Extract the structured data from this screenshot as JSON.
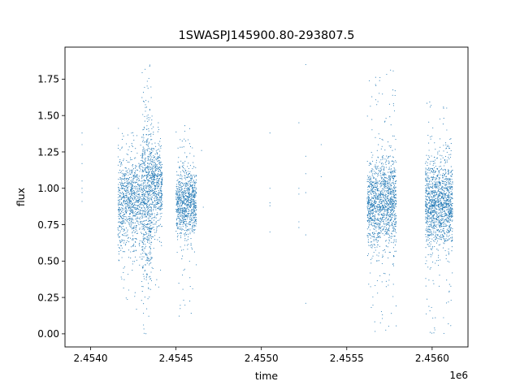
{
  "chart_data": {
    "type": "scatter",
    "title": "1SWASPJ145900.80-293807.5",
    "xlabel": "time",
    "ylabel": "flux",
    "x_offset_label": "1e6",
    "x_scale": 1000000,
    "xlim": [
      2453850,
      2456210
    ],
    "ylim": [
      -0.09,
      1.97
    ],
    "x_ticks": [
      2454000,
      2454500,
      2455000,
      2455500,
      2456000
    ],
    "x_tick_labels": [
      "2.4540",
      "2.4545",
      "2.4550",
      "2.4555",
      "2.4560"
    ],
    "y_ticks": [
      0.0,
      0.25,
      0.5,
      0.75,
      1.0,
      1.25,
      1.5,
      1.75
    ],
    "y_tick_labels": [
      "0.00",
      "0.25",
      "0.50",
      "0.75",
      "1.00",
      "1.25",
      "1.50",
      "1.75"
    ],
    "grid": false,
    "marker_color": "#1f77b4",
    "series": [
      {
        "clusters": [
          {
            "x_range": [
              2454160,
              2454300
            ],
            "y_center": 0.9,
            "y_spread": 0.16,
            "y_min": 0.15,
            "y_max": 1.45,
            "count": 900
          },
          {
            "x_range": [
              2454300,
              2454360
            ],
            "y_center": 0.95,
            "y_spread": 0.28,
            "y_min": 0.0,
            "y_max": 1.87,
            "count": 700
          },
          {
            "x_range": [
              2454360,
              2454420
            ],
            "y_center": 1.02,
            "y_spread": 0.14,
            "y_min": 0.3,
            "y_max": 1.45,
            "count": 450
          },
          {
            "x_range": [
              2454500,
              2454620
            ],
            "y_center": 0.9,
            "y_spread": 0.12,
            "y_min": 0.12,
            "y_max": 1.43,
            "count": 900
          },
          {
            "x_range": [
              2455620,
              2455790
            ],
            "y_center": 0.9,
            "y_spread": 0.15,
            "y_min": 0.0,
            "y_max": 1.83,
            "count": 1400
          },
          {
            "x_range": [
              2455960,
              2456120
            ],
            "y_center": 0.9,
            "y_spread": 0.15,
            "y_min": 0.0,
            "y_max": 1.6,
            "count": 1400
          }
        ],
        "isolated_points": [
          [
            2453950,
            1.38
          ],
          [
            2453950,
            1.3
          ],
          [
            2453950,
            1.17
          ],
          [
            2453950,
            1.05
          ],
          [
            2453950,
            1.0
          ],
          [
            2453950,
            0.97
          ],
          [
            2453950,
            0.91
          ],
          [
            2454650,
            1.26
          ],
          [
            2454660,
            0.87
          ],
          [
            2455050,
            1.38
          ],
          [
            2455050,
            1.0
          ],
          [
            2455050,
            0.9
          ],
          [
            2455050,
            0.88
          ],
          [
            2455050,
            0.7
          ],
          [
            2455220,
            1.45
          ],
          [
            2455220,
            1.0
          ],
          [
            2455220,
            0.96
          ],
          [
            2455220,
            0.77
          ],
          [
            2455220,
            0.73
          ],
          [
            2455260,
            1.85
          ],
          [
            2455260,
            1.22
          ],
          [
            2455260,
            1.1
          ],
          [
            2455260,
            0.97
          ],
          [
            2455260,
            0.68
          ],
          [
            2455260,
            0.21
          ],
          [
            2455350,
            1.3
          ],
          [
            2455350,
            1.08
          ]
        ]
      }
    ]
  }
}
